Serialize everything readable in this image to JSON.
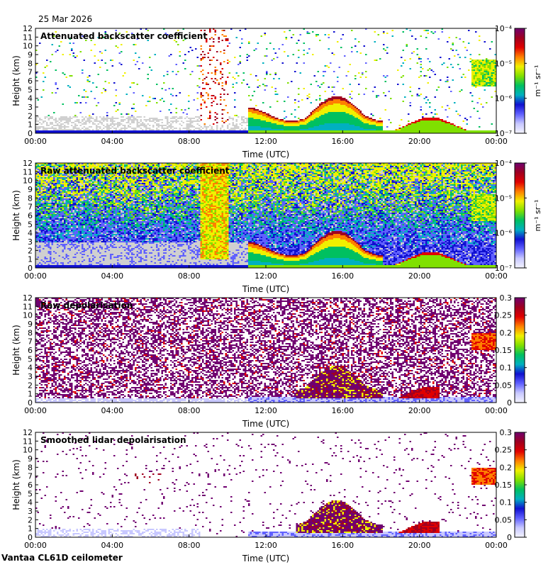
{
  "date": "25 Mar 2026",
  "footer": "Vantaa CL61D ceilometer",
  "colors": {
    "panel_bg": "#ffffff",
    "no_data": "#d0d0d0",
    "colormap": [
      "#f4f4ff",
      "#c8c8ff",
      "#6060ff",
      "#1010d0",
      "#00b0c0",
      "#00c060",
      "#80e000",
      "#f0f000",
      "#ff8000",
      "#e00000",
      "#a00020",
      "#700070"
    ]
  },
  "chart_data": [
    {
      "type": "heatmap",
      "title": "Attenuated backscatter coefficient",
      "xlabel": "Time (UTC)",
      "ylabel": "Height (km)",
      "xlim": [
        0,
        24
      ],
      "ylim": [
        0,
        12
      ],
      "x_ticks": [
        "00:00",
        "04:00",
        "08:00",
        "12:00",
        "16:00",
        "20:00",
        "00:00"
      ],
      "y_ticks": [
        "0",
        "1",
        "2",
        "3",
        "4",
        "5",
        "6",
        "7",
        "8",
        "9",
        "10",
        "11",
        "12"
      ],
      "colorbar": {
        "scale": "log",
        "range": [
          1e-07,
          0.0001
        ],
        "tick_labels": [
          "10⁻⁷",
          "10⁻⁶",
          "10⁻⁵",
          "10⁻⁴"
        ],
        "unit": "m⁻¹ sr⁻¹"
      }
    },
    {
      "type": "heatmap",
      "title": "Raw attenuated backscatter coefficient",
      "xlabel": "Time (UTC)",
      "ylabel": "Height (km)",
      "xlim": [
        0,
        24
      ],
      "ylim": [
        0,
        12
      ],
      "x_ticks": [
        "00:00",
        "04:00",
        "08:00",
        "12:00",
        "16:00",
        "20:00",
        "00:00"
      ],
      "y_ticks": [
        "0",
        "1",
        "2",
        "3",
        "4",
        "5",
        "6",
        "7",
        "8",
        "9",
        "10",
        "11",
        "12"
      ],
      "colorbar": {
        "scale": "log",
        "range": [
          1e-07,
          0.0001
        ],
        "tick_labels": [
          "10⁻⁷",
          "10⁻⁶",
          "10⁻⁵",
          "10⁻⁴"
        ],
        "unit": "m⁻¹ sr⁻¹"
      }
    },
    {
      "type": "heatmap",
      "title": "Raw depolarisation",
      "xlabel": "Time (UTC)",
      "ylabel": "Height (km)",
      "xlim": [
        0,
        24
      ],
      "ylim": [
        0,
        12
      ],
      "x_ticks": [
        "00:00",
        "04:00",
        "08:00",
        "12:00",
        "16:00",
        "20:00",
        "00:00"
      ],
      "y_ticks": [
        "0",
        "1",
        "2",
        "3",
        "4",
        "5",
        "6",
        "7",
        "8",
        "9",
        "10",
        "11",
        "12"
      ],
      "colorbar": {
        "scale": "linear",
        "range": [
          0,
          0.3
        ],
        "tick_labels": [
          "0",
          "0.05",
          "0.1",
          "0.15",
          "0.2",
          "0.25",
          "0.3"
        ],
        "unit": ""
      }
    },
    {
      "type": "heatmap",
      "title": "Smoothed lidar depolarisation",
      "xlabel": "Time (UTC)",
      "ylabel": "Height (km)",
      "xlim": [
        0,
        24
      ],
      "ylim": [
        0,
        12
      ],
      "x_ticks": [
        "00:00",
        "04:00",
        "08:00",
        "12:00",
        "16:00",
        "20:00",
        "00:00"
      ],
      "y_ticks": [
        "0",
        "1",
        "2",
        "3",
        "4",
        "5",
        "6",
        "7",
        "8",
        "9",
        "10",
        "11",
        "12"
      ],
      "colorbar": {
        "scale": "linear",
        "range": [
          0,
          0.3
        ],
        "tick_labels": [
          "0",
          "0.05",
          "0.1",
          "0.15",
          "0.2",
          "0.25",
          "0.3"
        ],
        "unit": ""
      }
    }
  ]
}
